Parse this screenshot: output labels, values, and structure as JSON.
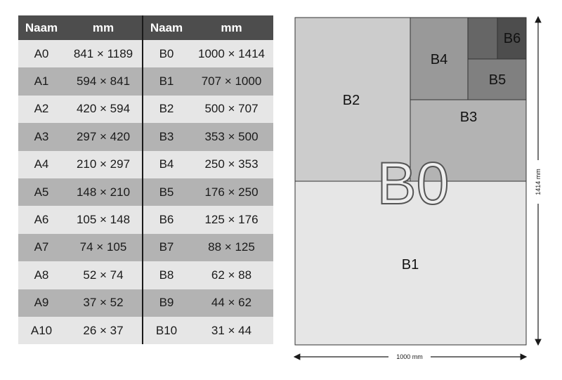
{
  "table": {
    "headers": [
      "Naam",
      "mm",
      "Naam",
      "mm"
    ],
    "rows": [
      [
        "A0",
        "841 × 1189",
        "B0",
        "1000 × 1414"
      ],
      [
        "A1",
        "594 × 841",
        "B1",
        "707 × 1000"
      ],
      [
        "A2",
        "420 × 594",
        "B2",
        "500 × 707"
      ],
      [
        "A3",
        "297 × 420",
        "B3",
        "353 × 500"
      ],
      [
        "A4",
        "210 × 297",
        "B4",
        "250 × 353"
      ],
      [
        "A5",
        "148 × 210",
        "B5",
        "176 × 250"
      ],
      [
        "A6",
        "105 × 148",
        "B6",
        "125 × 176"
      ],
      [
        "A7",
        "74 × 105",
        "B7",
        "88 × 125"
      ],
      [
        "A8",
        "52 × 74",
        "B8",
        "62 × 88"
      ],
      [
        "A9",
        "37 × 52",
        "B9",
        "44 × 62"
      ],
      [
        "A10",
        "26 × 37",
        "B10",
        "31 × 44"
      ]
    ]
  },
  "diagram": {
    "big_label": "B0",
    "labels": {
      "b1": "B1",
      "b2": "B2",
      "b3": "B3",
      "b4": "B4",
      "b5": "B5",
      "b6": "B6"
    },
    "width_dimension": "1000 mm",
    "height_dimension": "1414 mm"
  },
  "colors": {
    "header": "#4d4d4d",
    "row_light": "#e6e6e6",
    "row_dark": "#b3b3b3",
    "b1": "#e6e6e6",
    "b2": "#cccccc",
    "b3": "#b3b3b3",
    "b4": "#999999",
    "b5": "#808080",
    "b6": "#4d4d4d",
    "b7": "#666666"
  }
}
